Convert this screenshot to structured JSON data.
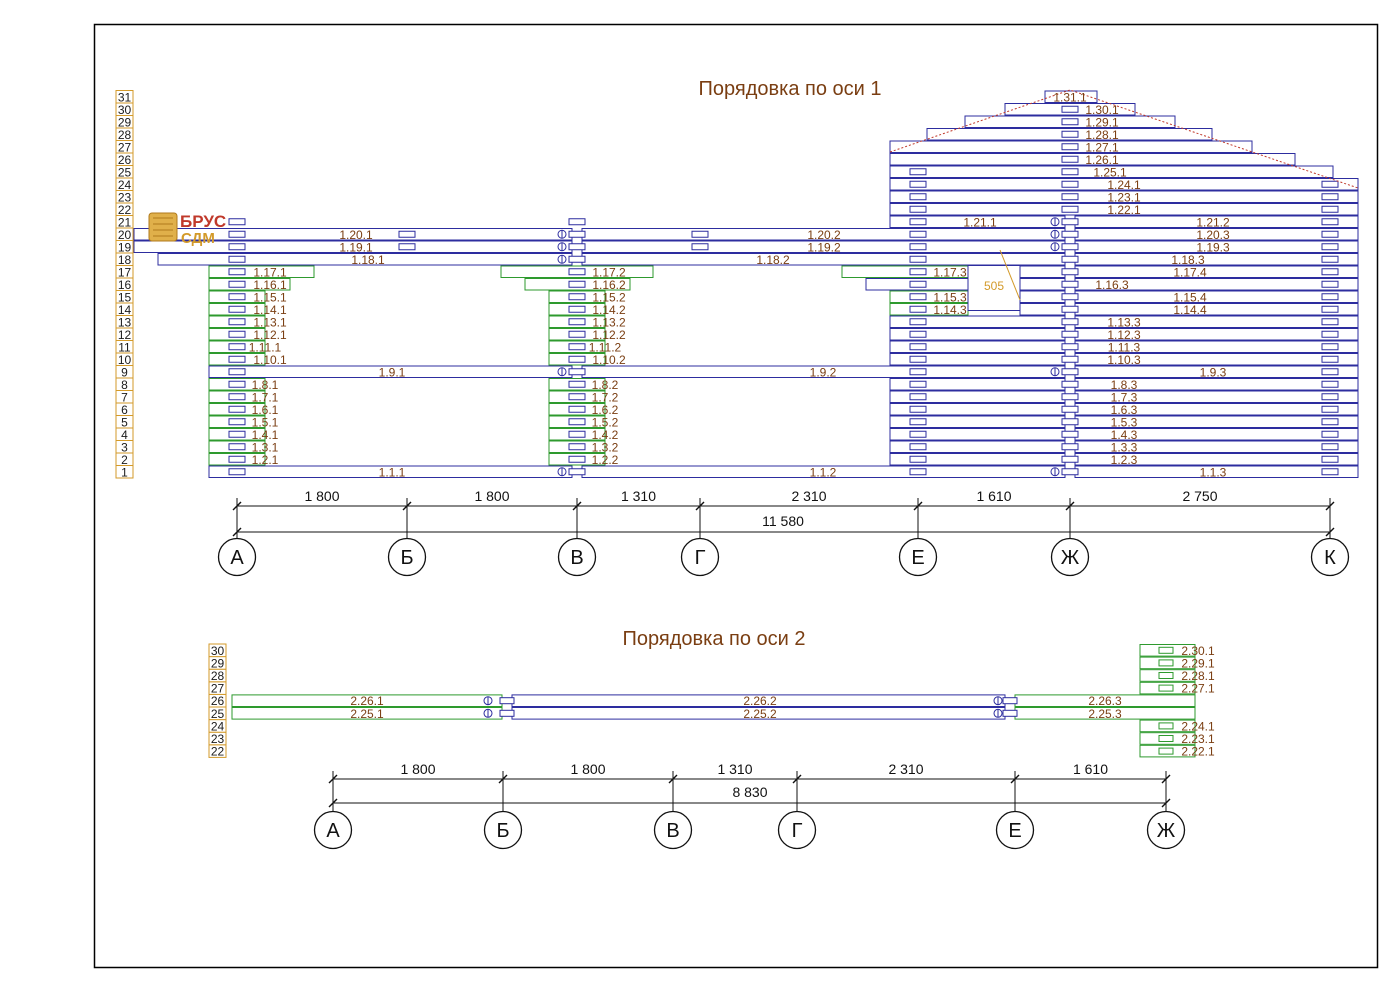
{
  "section1": {
    "title": "Порядовка по оси 1",
    "row_numbers": [
      "1",
      "2",
      "3",
      "4",
      "5",
      "6",
      "7",
      "8",
      "9",
      "10",
      "11",
      "12",
      "13",
      "14",
      "15",
      "16",
      "17",
      "18",
      "19",
      "20",
      "21",
      "22",
      "23",
      "24",
      "25",
      "26",
      "27",
      "28",
      "29",
      "30",
      "31"
    ],
    "dimensions": [
      "1 800",
      "1 800",
      "1 310",
      "2 310",
      "1 610",
      "2 750"
    ],
    "total": "11 580",
    "axes": [
      "А",
      "Б",
      "В",
      "Г",
      "Е",
      "Ж",
      "К"
    ],
    "logs": [
      {
        "row": 1,
        "labels": [
          "1.1.1",
          "1.1.2",
          "1.1.3"
        ]
      },
      {
        "row": 2,
        "labels": [
          "1.2.1",
          "1.2.2",
          "1.2.3"
        ]
      },
      {
        "row": 3,
        "labels": [
          "1.3.1",
          "1.3.2",
          "1.3.3"
        ]
      },
      {
        "row": 4,
        "labels": [
          "1.4.1",
          "1.4.2",
          "1.4.3"
        ]
      },
      {
        "row": 5,
        "labels": [
          "1.5.1",
          "1.5.2",
          "1.5.3"
        ]
      },
      {
        "row": 6,
        "labels": [
          "1.6.1",
          "1.6.2",
          "1.6.3"
        ]
      },
      {
        "row": 7,
        "labels": [
          "1.7.1",
          "1.7.2",
          "1.7.3"
        ]
      },
      {
        "row": 8,
        "labels": [
          "1.8.1",
          "1.8.2",
          "1.8.3"
        ]
      },
      {
        "row": 9,
        "labels": [
          "1.9.1",
          "1.9.2",
          "1.9.3"
        ]
      },
      {
        "row": 10,
        "labels": [
          "1.10.1",
          "1.10.2",
          "1.10.3"
        ]
      },
      {
        "row": 11,
        "labels": [
          "1.11.1",
          "1.11.2",
          "1.11.3"
        ]
      },
      {
        "row": 12,
        "labels": [
          "1.12.1",
          "1.12.2",
          "1.12.3"
        ]
      },
      {
        "row": 13,
        "labels": [
          "1.13.1",
          "1.13.2",
          "1.13.3"
        ]
      },
      {
        "row": 14,
        "labels": [
          "1.14.1",
          "1.14.2",
          "1.14.3",
          "1.14.4"
        ]
      },
      {
        "row": 15,
        "labels": [
          "1.15.1",
          "1.15.2",
          "1.15.3",
          "1.15.4"
        ]
      },
      {
        "row": 16,
        "labels": [
          "1.16.1",
          "1.16.2",
          "1.16.3"
        ]
      },
      {
        "row": 17,
        "labels": [
          "1.17.1",
          "1.17.2",
          "1.17.3",
          "1.17.4"
        ]
      },
      {
        "row": 18,
        "labels": [
          "1.18.1",
          "1.18.2",
          "1.18.3"
        ]
      },
      {
        "row": 19,
        "labels": [
          "1.19.1",
          "1.19.2",
          "1.19.3"
        ]
      },
      {
        "row": 20,
        "labels": [
          "1.20.1",
          "1.20.2",
          "1.20.3"
        ]
      },
      {
        "row": 21,
        "labels": [
          "1.21.1",
          "1.21.2"
        ]
      },
      {
        "row": 22,
        "labels": [
          "1.22.1"
        ]
      },
      {
        "row": 23,
        "labels": [
          "1.23.1"
        ]
      },
      {
        "row": 24,
        "labels": [
          "1.24.1"
        ]
      },
      {
        "row": 25,
        "labels": [
          "1.25.1"
        ]
      },
      {
        "row": 26,
        "labels": [
          "1.26.1"
        ]
      },
      {
        "row": 27,
        "labels": [
          "1.27.1"
        ]
      },
      {
        "row": 28,
        "labels": [
          "1.28.1"
        ]
      },
      {
        "row": 29,
        "labels": [
          "1.29.1"
        ]
      },
      {
        "row": 30,
        "labels": [
          "1.30.1"
        ]
      },
      {
        "row": 31,
        "labels": [
          "1.31.1"
        ]
      }
    ],
    "opening_label": "505"
  },
  "section2": {
    "title": "Порядовка по оси 2",
    "row_numbers": [
      "22",
      "23",
      "24",
      "25",
      "26",
      "27",
      "28",
      "29",
      "30"
    ],
    "dimensions": [
      "1 800",
      "1 800",
      "1 310",
      "2 310",
      "1 610"
    ],
    "total": "8 830",
    "axes": [
      "А",
      "Б",
      "В",
      "Г",
      "Е",
      "Ж"
    ],
    "long_logs": [
      {
        "row": 25,
        "labels": [
          "2.25.1",
          "2.25.2",
          "2.25.3"
        ]
      },
      {
        "row": 26,
        "labels": [
          "2.26.1",
          "2.26.2",
          "2.26.3"
        ]
      }
    ],
    "stub_logs": [
      "2.22.1",
      "2.23.1",
      "2.24.1",
      "2.27.1",
      "2.28.1",
      "2.29.1",
      "2.30.1"
    ]
  },
  "logo": {
    "line1": "БРУС",
    "line2": "СДМ"
  },
  "colors": {
    "log_blue": "#2d2d9f",
    "stub_green": "#2e9a2e",
    "label_brown": "#7a3e12",
    "row_box": "#d39a2a",
    "roof_red": "#c0392b"
  }
}
